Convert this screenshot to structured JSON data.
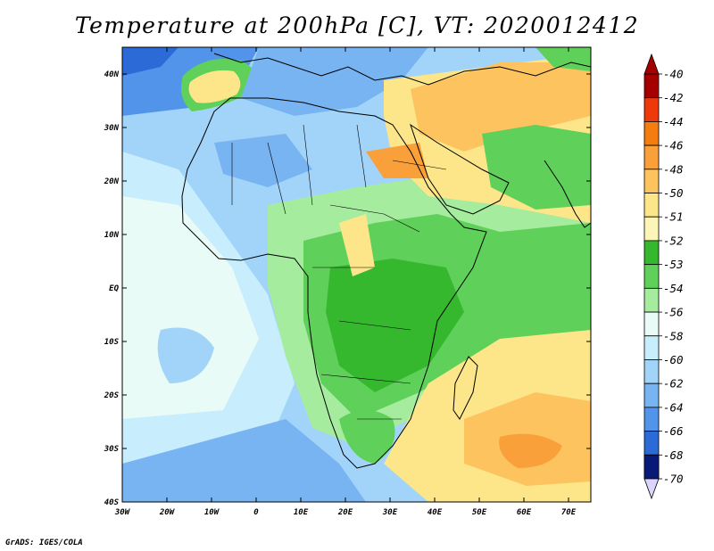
{
  "title": "Temperature at 200hPa [C], VT: 2020012412",
  "credit": "GrADS: IGES/COLA",
  "map": {
    "lon_range": [
      -30,
      75
    ],
    "lat_range": [
      -40,
      45
    ],
    "x_ticks": [
      {
        "value": -30,
        "label": "30W"
      },
      {
        "value": -20,
        "label": "20W"
      },
      {
        "value": -10,
        "label": "10W"
      },
      {
        "value": 0,
        "label": "0"
      },
      {
        "value": 10,
        "label": "10E"
      },
      {
        "value": 20,
        "label": "20E"
      },
      {
        "value": 30,
        "label": "30E"
      },
      {
        "value": 40,
        "label": "40E"
      },
      {
        "value": 50,
        "label": "50E"
      },
      {
        "value": 60,
        "label": "60E"
      },
      {
        "value": 70,
        "label": "70E"
      }
    ],
    "y_ticks": [
      {
        "value": 40,
        "label": "40N"
      },
      {
        "value": 30,
        "label": "30N"
      },
      {
        "value": 20,
        "label": "20N"
      },
      {
        "value": 10,
        "label": "10N"
      },
      {
        "value": 0,
        "label": "EQ"
      },
      {
        "value": -10,
        "label": "10S"
      },
      {
        "value": -20,
        "label": "20S"
      },
      {
        "value": -30,
        "label": "30S"
      },
      {
        "value": -40,
        "label": "40S"
      }
    ]
  },
  "colorbar": {
    "levels": [
      {
        "label": "-40",
        "color": "#a50000"
      },
      {
        "label": "-42",
        "color": "#ee3a0a"
      },
      {
        "label": "-44",
        "color": "#f57c0f"
      },
      {
        "label": "-46",
        "color": "#f9a03a"
      },
      {
        "label": "-48",
        "color": "#fcc35f"
      },
      {
        "label": "-50",
        "color": "#fde68a"
      },
      {
        "label": "-51",
        "color": "#fdf5b8"
      },
      {
        "label": "-52",
        "color": "#35b82e"
      },
      {
        "label": "-53",
        "color": "#5fd05a"
      },
      {
        "label": "-54",
        "color": "#a6ec9f"
      },
      {
        "label": "-56",
        "color": "#e8fbf6"
      },
      {
        "label": "-58",
        "color": "#c8eefe"
      },
      {
        "label": "-60",
        "color": "#a2d4fa"
      },
      {
        "label": "-62",
        "color": "#78b4f2"
      },
      {
        "label": "-64",
        "color": "#5294ea"
      },
      {
        "label": "-66",
        "color": "#2c6ad8"
      },
      {
        "label": "-68",
        "color": "#1442b8"
      },
      {
        "label": "-70",
        "color": "#081a78"
      }
    ],
    "under_color": "#dcd4fb"
  }
}
